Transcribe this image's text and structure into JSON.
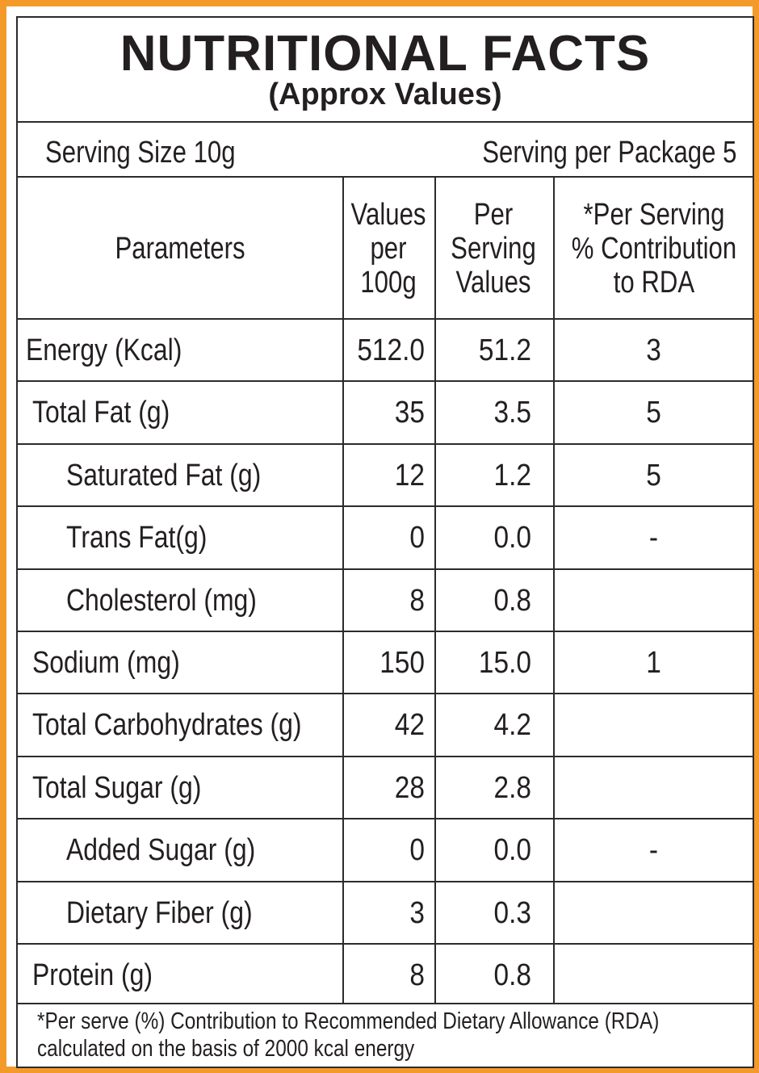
{
  "title": "NUTRITIONAL FACTS",
  "subtitle": "(Approx Values)",
  "serving_size": "Serving Size 10g",
  "serving_per_package": "Serving per Package 5",
  "columns": {
    "parameters": "Parameters",
    "per100": [
      "Values",
      "per",
      "100g"
    ],
    "perServing": [
      "Per",
      "Serving",
      "Values"
    ],
    "rda": [
      "*Per Serving",
      "% Contribution",
      "to RDA"
    ]
  },
  "rows": [
    {
      "name": "Energy (Kcal)",
      "per100": "512.0",
      "perServing": "51.2",
      "rda": "3",
      "indent": 1
    },
    {
      "name": "Total Fat (g)",
      "per100": "35",
      "perServing": "3.5",
      "rda": "5",
      "indent": 0
    },
    {
      "name": "Saturated Fat (g)",
      "per100": "12",
      "perServing": "1.2",
      "rda": "5",
      "indent": 2
    },
    {
      "name": "Trans Fat(g)",
      "per100": "0",
      "perServing": "0.0",
      "rda": "-",
      "indent": 2
    },
    {
      "name": "Cholesterol (mg)",
      "per100": "8",
      "perServing": "0.8",
      "rda": "",
      "indent": 2
    },
    {
      "name": "Sodium (mg)",
      "per100": "150",
      "perServing": "15.0",
      "rda": "1",
      "indent": 0
    },
    {
      "name": "Total Carbohydrates (g)",
      "per100": "42",
      "perServing": "4.2",
      "rda": "",
      "indent": 0
    },
    {
      "name": "Total Sugar (g)",
      "per100": "28",
      "perServing": "2.8",
      "rda": "",
      "indent": 0
    },
    {
      "name": "Added Sugar (g)",
      "per100": "0",
      "perServing": "0.0",
      "rda": "-",
      "indent": 2
    },
    {
      "name": "Dietary Fiber (g)",
      "per100": "3",
      "perServing": "0.3",
      "rda": "",
      "indent": 2
    },
    {
      "name": "Protein (g)",
      "per100": "8",
      "perServing": "0.8",
      "rda": "",
      "indent": 0
    }
  ],
  "footnote": [
    "*Per serve (%) Contribution to Recommended Dietary Allowance (RDA)",
    "calculated on the basis of 2000 kcal energy"
  ],
  "colors": {
    "border_orange": "#f39a2b",
    "ink": "#231f20"
  }
}
